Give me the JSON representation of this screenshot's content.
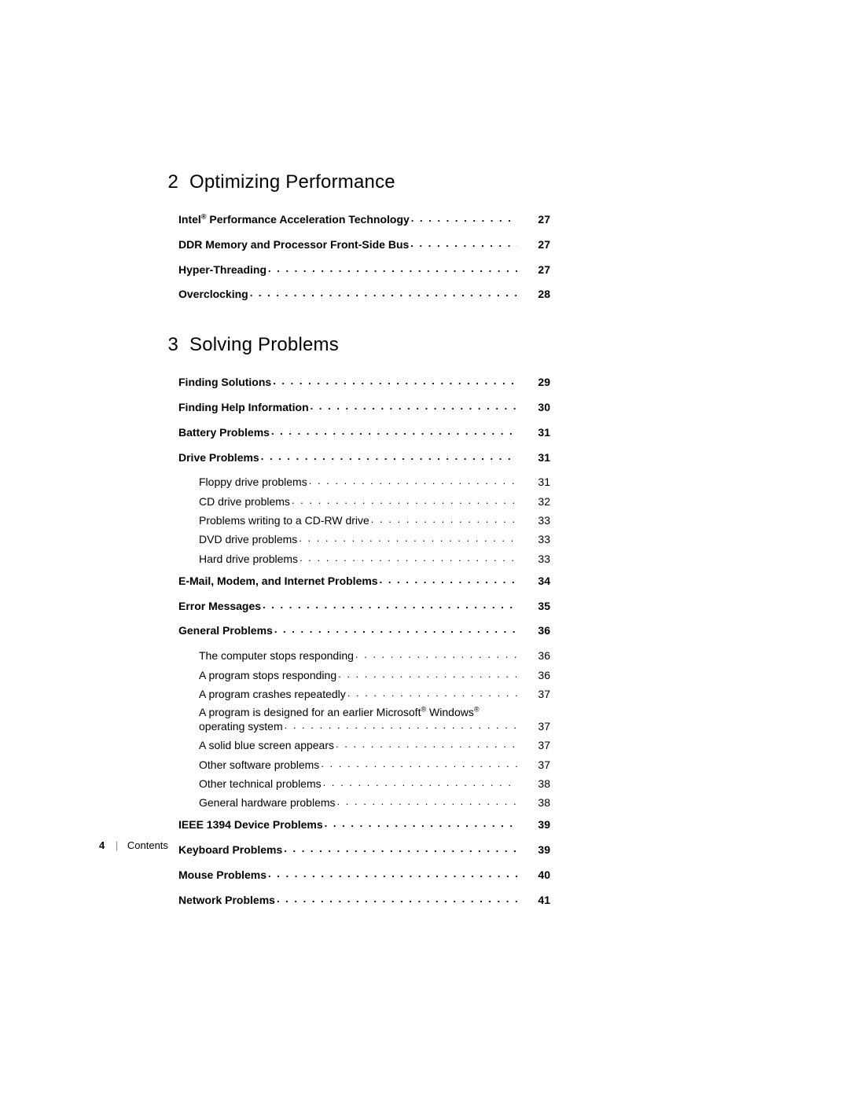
{
  "footer": {
    "page": "4",
    "label": "Contents"
  },
  "chapters": [
    {
      "number": "2",
      "title": "Optimizing Performance",
      "entries": [
        {
          "bold": true,
          "label_html": "Intel<sup class='reg'>®</sup> Performance Acceleration Technology",
          "page": "27"
        },
        {
          "bold": true,
          "label": "DDR Memory and Processor Front-Side Bus",
          "page": "27"
        },
        {
          "bold": true,
          "label": "Hyper-Threading",
          "page": "27"
        },
        {
          "bold": true,
          "label": "Overclocking",
          "page": "28"
        }
      ]
    },
    {
      "number": "3",
      "title": "Solving Problems",
      "entries": [
        {
          "bold": true,
          "label": "Finding Solutions",
          "page": "29"
        },
        {
          "bold": true,
          "label": "Finding Help Information",
          "page": "30"
        },
        {
          "bold": true,
          "label": "Battery Problems",
          "page": "31"
        },
        {
          "bold": true,
          "label": "Drive Problems",
          "page": "31"
        },
        {
          "sub": true,
          "first": true,
          "label": "Floppy drive problems",
          "page": "31"
        },
        {
          "sub": true,
          "label": "CD drive problems",
          "page": "32"
        },
        {
          "sub": true,
          "label": "Problems writing to a CD-RW drive",
          "page": "33"
        },
        {
          "sub": true,
          "label": "DVD drive problems",
          "page": "33"
        },
        {
          "sub": true,
          "label": "Hard drive problems",
          "page": "33"
        },
        {
          "gap": true
        },
        {
          "bold": true,
          "label": "E-Mail, Modem, and Internet Problems",
          "page": "34"
        },
        {
          "bold": true,
          "label": "Error Messages",
          "page": "35"
        },
        {
          "bold": true,
          "label": "General Problems",
          "page": "36"
        },
        {
          "sub": true,
          "first": true,
          "label": "The computer stops responding",
          "page": "36"
        },
        {
          "sub": true,
          "label": "A program stops responding",
          "page": "36"
        },
        {
          "sub": true,
          "label": "A program crashes repeatedly",
          "page": "37"
        },
        {
          "sub": true,
          "wrap": true,
          "label_html": "A program is designed for an earlier Microsoft<sup class='reg'>®</sup> Windows<sup class='reg'>®</sup> operating system",
          "page": "37"
        },
        {
          "sub": true,
          "label": "A solid blue screen appears",
          "page": "37"
        },
        {
          "sub": true,
          "label": "Other software problems",
          "page": "37"
        },
        {
          "sub": true,
          "label": "Other technical problems",
          "page": "38"
        },
        {
          "sub": true,
          "label": "General hardware problems",
          "page": "38"
        },
        {
          "gap": true
        },
        {
          "bold": true,
          "label": "IEEE 1394 Device Problems",
          "page": "39"
        },
        {
          "bold": true,
          "label": "Keyboard Problems",
          "page": "39"
        },
        {
          "bold": true,
          "label": "Mouse Problems",
          "page": "40"
        },
        {
          "bold": true,
          "label": "Network Problems",
          "page": "41"
        }
      ]
    }
  ]
}
